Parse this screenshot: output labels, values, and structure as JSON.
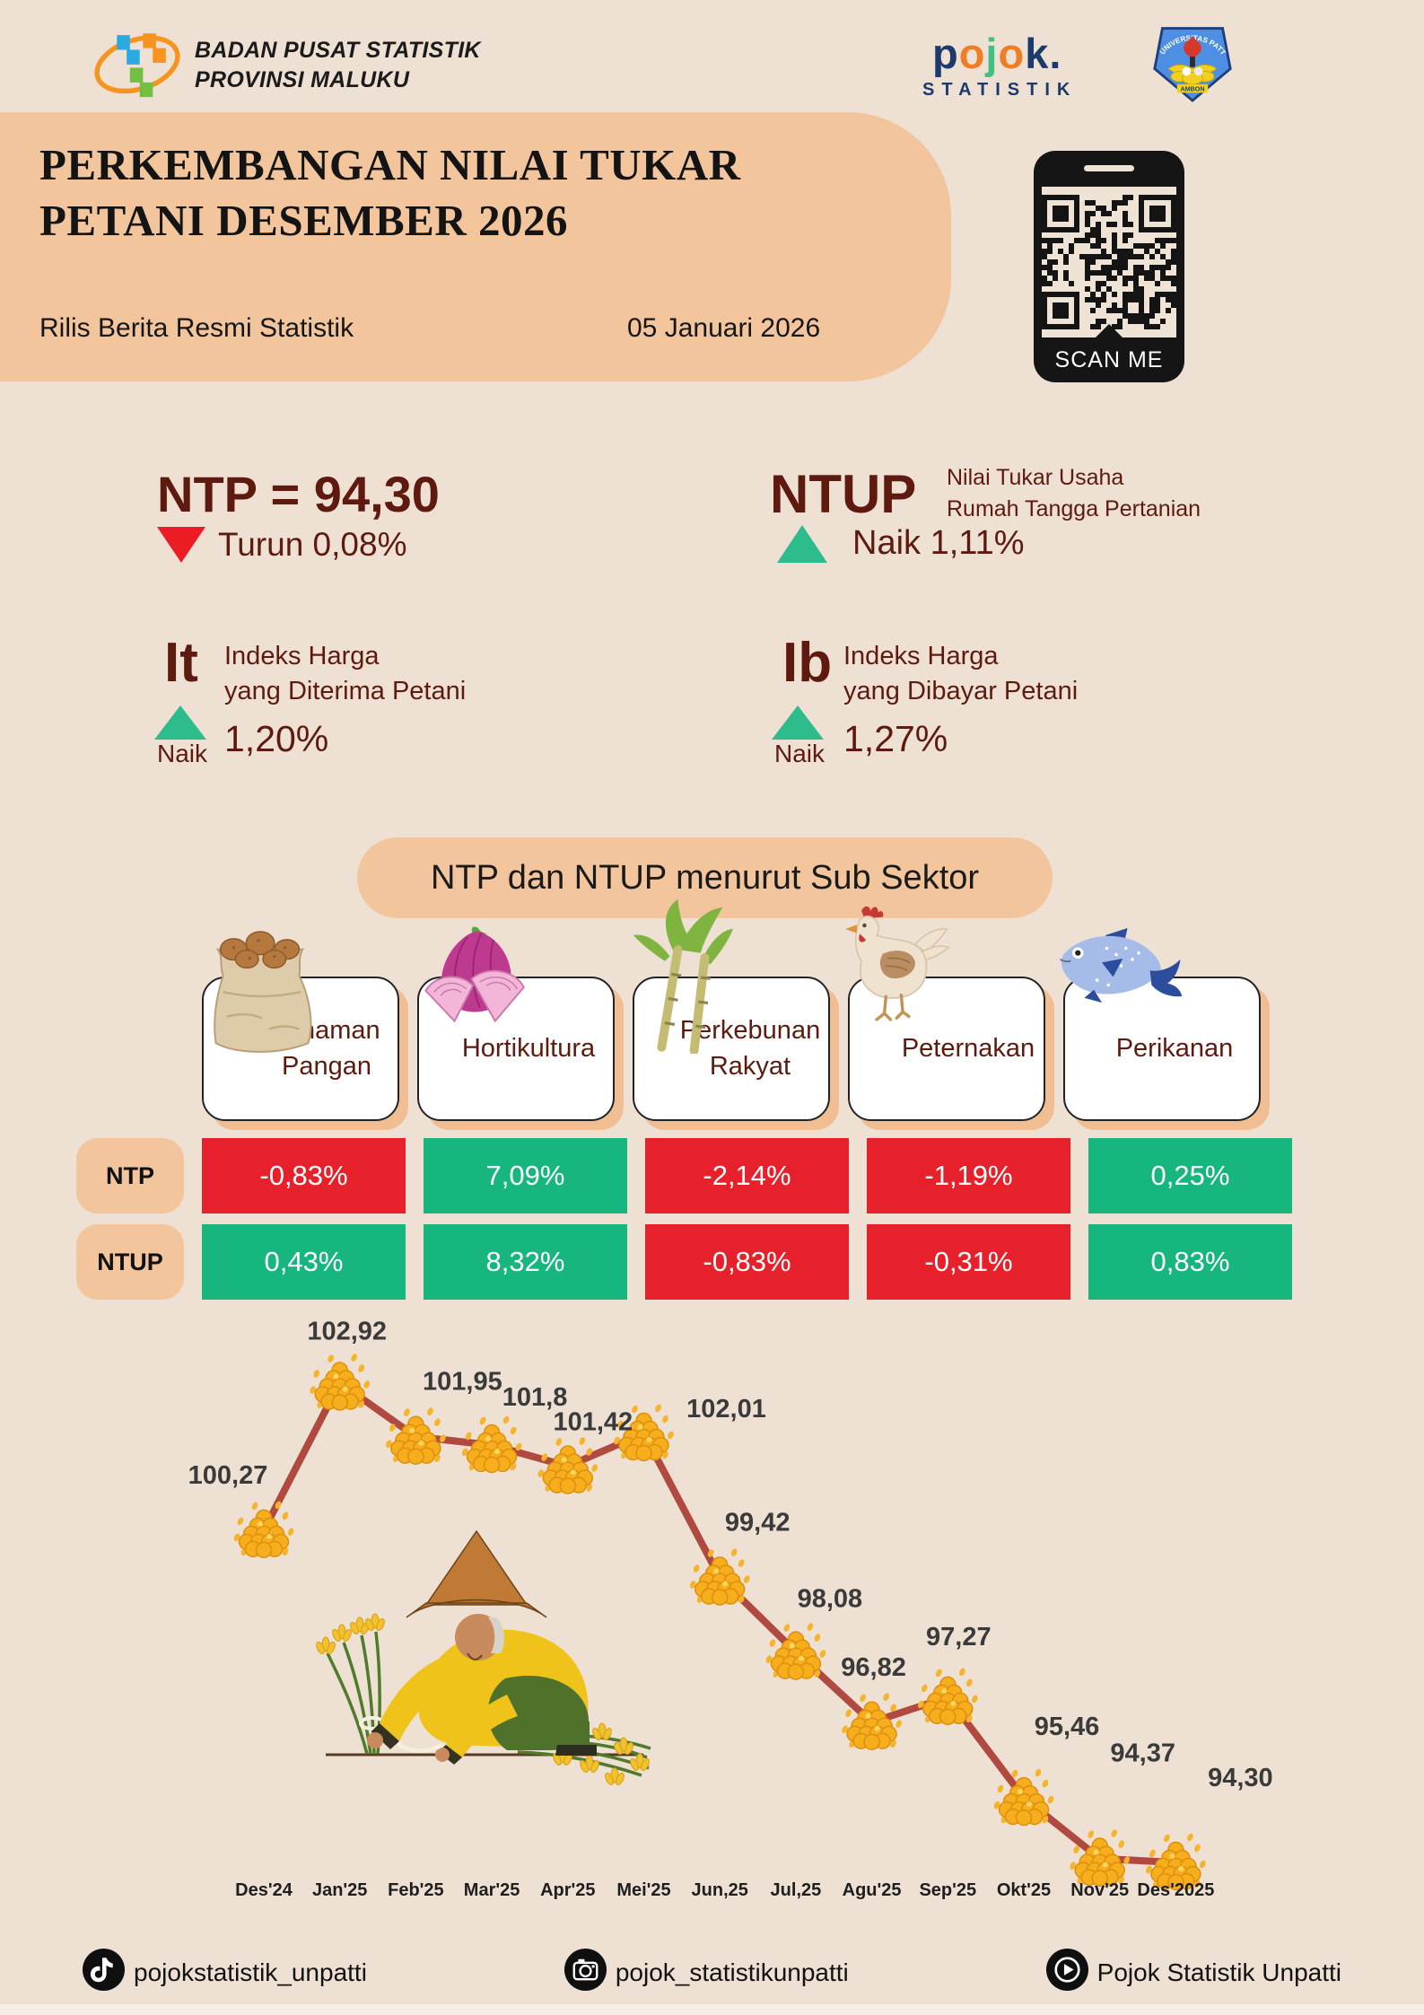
{
  "header": {
    "org_line1": "BADAN PUSAT STATISTIK",
    "org_line2": "PROVINSI MALUKU",
    "pojok": {
      "letters": [
        "p",
        "o",
        "j",
        "o",
        "k",
        "."
      ],
      "subtitle": "STATISTIK"
    },
    "univ": {
      "name": "UNIVERSITAS PATTIMURA",
      "city": "AMBON"
    }
  },
  "title_block": {
    "title_line1": "PERKEMBANGAN NILAI TUKAR",
    "title_line2": "PETANI DESEMBER 2026",
    "release_label": "Rilis Berita Resmi Statistik",
    "release_date": "05 Januari 2026",
    "qr_label": "SCAN ME"
  },
  "stats": {
    "ntp": {
      "headline": "NTP = 94,30",
      "direction": "turun",
      "change_text": "Turun 0,08%"
    },
    "ntup": {
      "abbr": "NTUP",
      "desc_line1": "Nilai Tukar  Usaha",
      "desc_line2": "Rumah Tangga Pertanian",
      "direction": "naik",
      "change_text": "Naik 1,11%"
    },
    "it": {
      "abbr": "It",
      "desc_line1": "Indeks Harga",
      "desc_line2": "yang Diterima Petani",
      "direction_label": "Naik",
      "value": "1,20%"
    },
    "ib": {
      "abbr": "Ib",
      "desc_line1": "Indeks Harga",
      "desc_line2": "yang Dibayar Petani",
      "direction_label": "Naik",
      "value": "1,27%"
    }
  },
  "subsector": {
    "section_title": "NTP dan NTUP menurut Sub Sektor",
    "sectors": [
      {
        "name": "Tanaman Pangan",
        "icon": "potato-sack-icon"
      },
      {
        "name": "Hortikultura",
        "icon": "onion-icon"
      },
      {
        "name": "Perkebunan Rakyat",
        "icon": "sugarcane-icon"
      },
      {
        "name": "Peternakan",
        "icon": "chicken-icon"
      },
      {
        "name": "Perikanan",
        "icon": "fish-icon"
      }
    ],
    "rows": [
      {
        "label": "NTP",
        "values": [
          {
            "text": "-0,83%"
          },
          {
            "text": "7,09%"
          },
          {
            "text": "-2,14%"
          },
          {
            "text": "-1,19%"
          },
          {
            "text": "0,25%"
          }
        ]
      },
      {
        "label": "NTUP",
        "values": [
          {
            "text": "0,43%"
          },
          {
            "text": "8,32%"
          },
          {
            "text": "-0,83%"
          },
          {
            "text": "-0,31%"
          },
          {
            "text": "0,83%"
          }
        ]
      }
    ]
  },
  "chart_data": {
    "type": "line",
    "title": "",
    "x": [
      "Des'24",
      "Jan'25",
      "Feb'25",
      "Mar'25",
      "Apr'25",
      "Mei'25",
      "Jun,25",
      "Jul,25",
      "Agu'25",
      "Sep'25",
      "Okt'25",
      "Nov'25",
      "Des'2025"
    ],
    "series": [
      {
        "name": "NTP",
        "values": [
          100.27,
          102.92,
          101.95,
          101.8,
          101.42,
          102.01,
          99.42,
          98.08,
          96.82,
          97.27,
          95.46,
          94.37,
          94.3
        ]
      }
    ],
    "value_labels": [
      "100,27",
      "102,92",
      "101,95",
      "101,8",
      "101,42",
      "102,01",
      "99,42",
      "98,08",
      "96,82",
      "97,27",
      "95,46",
      "94,37",
      "94,30"
    ],
    "ylim": [
      93.5,
      103.5
    ],
    "grid": false,
    "legend": false,
    "line_color": "#B04A40",
    "marker": "corn-pile"
  },
  "footer": {
    "items": [
      {
        "icon": "tiktok-icon",
        "label": "pojokstatistik_unpatti"
      },
      {
        "icon": "instagram-icon",
        "label": "pojok_statistikunpatti"
      },
      {
        "icon": "youtube-icon",
        "label": "Pojok Statistik Unpatti"
      }
    ]
  },
  "colors": {
    "page_bg": "#EEE1D4",
    "accent_salmon": "#F2C59D",
    "maroon_text": "#5E1A0E",
    "positive_green": "#17B67E",
    "negative_red": "#E7212B",
    "up_triangle": "#2DBD8D",
    "down_triangle": "#EC1C24",
    "chart_line": "#B04A40"
  }
}
